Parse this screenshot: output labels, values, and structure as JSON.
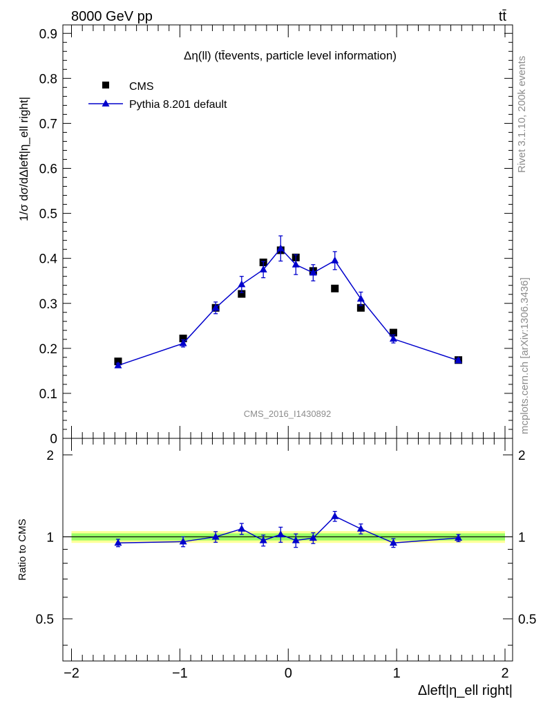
{
  "header": {
    "energy_label": "8000 GeV pp",
    "process_label": "tt̄",
    "rivet_label": "Rivet 3.1.10,  200k events",
    "mcplots_label": "mcplots.cern.ch [arXiv:1306.3436]",
    "analysis_label": "CMS_2016_I1430892"
  },
  "colors": {
    "data": "#000000",
    "mc": "#0000cc",
    "band_inner": "#99ff66",
    "band_outer": "#ffff99",
    "watermark": "#8c8c8c"
  },
  "chart_data": [
    {
      "type": "scatter",
      "panel": "main",
      "title": "Δη(ll) (tt̄events, particle level information)",
      "xlabel": "Δleft|η_ell right|",
      "ylabel": "1/σ dσ/dΔleft|η_ell right|",
      "xlim": [
        -2,
        2
      ],
      "ylim": [
        0,
        0.92
      ],
      "y_ticks": [
        "0.1",
        "0.2",
        "0.3",
        "0.4",
        "0.5",
        "0.6",
        "0.7",
        "0.8",
        "0.9"
      ],
      "y_zero_label": "0",
      "legend_position": "top-left",
      "series": [
        {
          "name": "CMS",
          "marker": "square",
          "x": [
            -1.57,
            -0.97,
            -0.67,
            -0.43,
            -0.23,
            -0.07,
            0.07,
            0.23,
            0.43,
            0.67,
            0.97,
            1.57
          ],
          "y": [
            0.171,
            0.222,
            0.29,
            0.321,
            0.391,
            0.418,
            0.402,
            0.372,
            0.333,
            0.29,
            0.235,
            0.174
          ]
        },
        {
          "name": "Pythia 8.201 default",
          "marker": "triangle-line",
          "x": [
            -1.57,
            -0.97,
            -0.67,
            -0.43,
            -0.23,
            -0.07,
            0.07,
            0.23,
            0.43,
            0.67,
            0.97,
            1.57
          ],
          "y": [
            0.162,
            0.211,
            0.29,
            0.342,
            0.375,
            0.422,
            0.386,
            0.368,
            0.395,
            0.31,
            0.221,
            0.173
          ],
          "yerr": [
            0.005,
            0.008,
            0.013,
            0.018,
            0.018,
            0.028,
            0.022,
            0.018,
            0.02,
            0.015,
            0.009,
            0.005
          ]
        }
      ]
    },
    {
      "type": "line",
      "panel": "ratio",
      "ylabel": "Ratio to CMS",
      "xlabel": "Δleft|η_ell right|",
      "xlim": [
        -2,
        2
      ],
      "ylim": [
        0.35,
        2.3
      ],
      "y_scale": "log",
      "y_ticks": [
        "0.5",
        "1",
        "2"
      ],
      "x_ticks": [
        "−2",
        "−1",
        "0",
        "1",
        "2"
      ],
      "band_inner": [
        0.97,
        1.03
      ],
      "band_outer": [
        0.95,
        1.05
      ],
      "series": [
        {
          "name": "Pythia 8.201 default",
          "x": [
            -1.57,
            -0.97,
            -0.67,
            -0.43,
            -0.23,
            -0.07,
            0.07,
            0.23,
            0.43,
            0.67,
            0.97,
            1.57
          ],
          "y": [
            0.95,
            0.96,
            1.0,
            1.07,
            0.97,
            1.02,
            0.97,
            0.99,
            1.19,
            1.07,
            0.95,
            0.99
          ],
          "yerr": [
            0.03,
            0.04,
            0.045,
            0.05,
            0.045,
            0.065,
            0.055,
            0.045,
            0.05,
            0.045,
            0.035,
            0.03
          ]
        }
      ]
    }
  ]
}
